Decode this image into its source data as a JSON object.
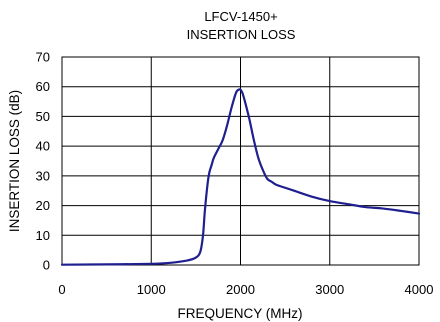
{
  "chart_data": {
    "type": "line",
    "title": "LFCV-1450+",
    "subtitle": "INSERTION LOSS",
    "xlabel": "FREQUENCY (MHz)",
    "ylabel": "INSERTION LOSS (dB)",
    "xlim": [
      0,
      4000
    ],
    "ylim": [
      0,
      70
    ],
    "xticks": [
      0,
      1000,
      2000,
      3000,
      4000
    ],
    "yticks": [
      0,
      10,
      20,
      30,
      40,
      50,
      60,
      70
    ],
    "grid": true,
    "line_color": "#1f1f8f",
    "series": [
      {
        "x": [
          0,
          500,
          1000,
          1200,
          1400,
          1500,
          1550,
          1580,
          1600,
          1630,
          1650,
          1680,
          1700,
          1750,
          1800,
          1850,
          1900,
          1950,
          1980,
          2000,
          2020,
          2050,
          2100,
          2150,
          2200,
          2250,
          2300,
          2350,
          2400,
          2500,
          2600,
          2800,
          3000,
          3200,
          3400,
          3600,
          3800,
          4000
        ],
        "y": [
          0.1,
          0.2,
          0.4,
          0.7,
          1.5,
          2.5,
          4.5,
          10,
          18,
          27,
          31,
          34,
          36,
          39,
          42,
          47,
          53,
          58,
          59,
          59,
          58,
          55,
          49,
          42,
          36,
          32,
          29,
          28,
          27,
          26,
          25,
          23,
          21.5,
          20.5,
          19.5,
          19,
          18.2,
          17.3
        ]
      }
    ]
  }
}
